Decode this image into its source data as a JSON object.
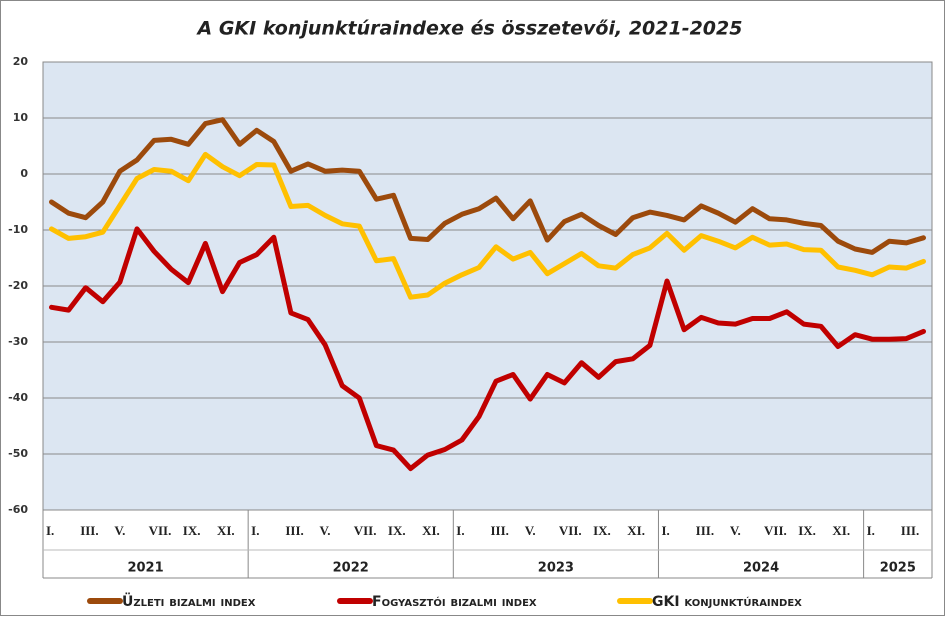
{
  "chart_data": {
    "type": "line",
    "title": "A GKI konjunktúraindexe és összetevői, 2021-2025",
    "categories": [
      "I.",
      null,
      "III.",
      null,
      "V.",
      null,
      "VII.",
      null,
      "IX.",
      null,
      "XI.",
      null,
      "I.",
      null,
      "III.",
      null,
      "V.",
      null,
      "VII.",
      null,
      "IX.",
      null,
      "XI.",
      null,
      "I.",
      null,
      "III.",
      null,
      "V.",
      null,
      "VII.",
      null,
      "IX.",
      null,
      "XI.",
      null,
      "I.",
      null,
      "III.",
      null,
      "V.",
      null,
      "VII.",
      null,
      "IX.",
      null,
      "XI.",
      null,
      "I.",
      null,
      "III.",
      null
    ],
    "year_groups": [
      {
        "label": "2021",
        "count": 12
      },
      {
        "label": "2022",
        "count": 12
      },
      {
        "label": "2023",
        "count": 12
      },
      {
        "label": "2024",
        "count": 12
      },
      {
        "label": "2025",
        "count": 4
      }
    ],
    "series": [
      {
        "name": "Üzleti bizalmi index",
        "color": "#9c4a0c",
        "values": [
          -5,
          -7,
          -7.8,
          -5,
          0.5,
          2.5,
          6,
          6.2,
          5.3,
          9,
          9.7,
          5.3,
          7.8,
          5.8,
          0.5,
          1.8,
          0.5,
          0.7,
          0.5,
          -4.5,
          -3.8,
          -11.5,
          -11.7,
          -8.8,
          -7.2,
          -6.2,
          -4.3,
          -8,
          -4.8,
          -11.8,
          -8.5,
          -7.2,
          -9.2,
          -10.8,
          -7.8,
          -6.8,
          -7.4,
          -8.2,
          -5.7,
          -7,
          -8.6,
          -6.2,
          -8,
          -8.2,
          -8.8,
          -9.2,
          -12,
          -13.4,
          -14,
          -12,
          -12.3,
          -11.4
        ]
      },
      {
        "name": "Fogyasztói bizalmi index",
        "color": "#c00000",
        "values": [
          -23.8,
          -24.3,
          -20.3,
          -22.8,
          -19.3,
          -9.8,
          -13.8,
          -17,
          -19.4,
          -12.4,
          -21,
          -15.8,
          -14.4,
          -11.3,
          -24.8,
          -26,
          -30.5,
          -37.8,
          -40,
          -48.5,
          -49.3,
          -52.6,
          -50.2,
          -49.2,
          -47.5,
          -43.3,
          -37,
          -35.8,
          -40.2,
          -35.8,
          -37.3,
          -33.7,
          -36.3,
          -33.5,
          -33,
          -30.6,
          -19.1,
          -27.8,
          -25.6,
          -26.6,
          -26.8,
          -25.8,
          -25.8,
          -24.6,
          -26.8,
          -27.2,
          -30.8,
          -28.7,
          -29.5,
          -29.5,
          -29.4,
          -28.1
        ]
      },
      {
        "name": "GKI konjunktúraindex",
        "color": "#ffc000",
        "values": [
          -9.8,
          -11.5,
          -11.2,
          -10.4,
          -5.6,
          -0.8,
          0.8,
          0.5,
          -1.2,
          3.5,
          1.3,
          -0.3,
          1.7,
          1.6,
          -5.8,
          -5.6,
          -7.4,
          -8.9,
          -9.3,
          -15.5,
          -15.1,
          -22,
          -21.6,
          -19.5,
          -18,
          -16.7,
          -13,
          -15.2,
          -14,
          -17.8,
          -16,
          -14.2,
          -16.4,
          -16.8,
          -14.4,
          -13.2,
          -10.6,
          -13.6,
          -11,
          -12,
          -13.2,
          -11.3,
          -12.7,
          -12.5,
          -13.5,
          -13.6,
          -16.6,
          -17.2,
          -18,
          -16.6,
          -16.8,
          -15.6
        ]
      }
    ],
    "ylim": [
      -60,
      20
    ],
    "yticks": [
      -60,
      -50,
      -40,
      -30,
      -20,
      -10,
      0,
      10,
      20
    ],
    "grid": true
  }
}
